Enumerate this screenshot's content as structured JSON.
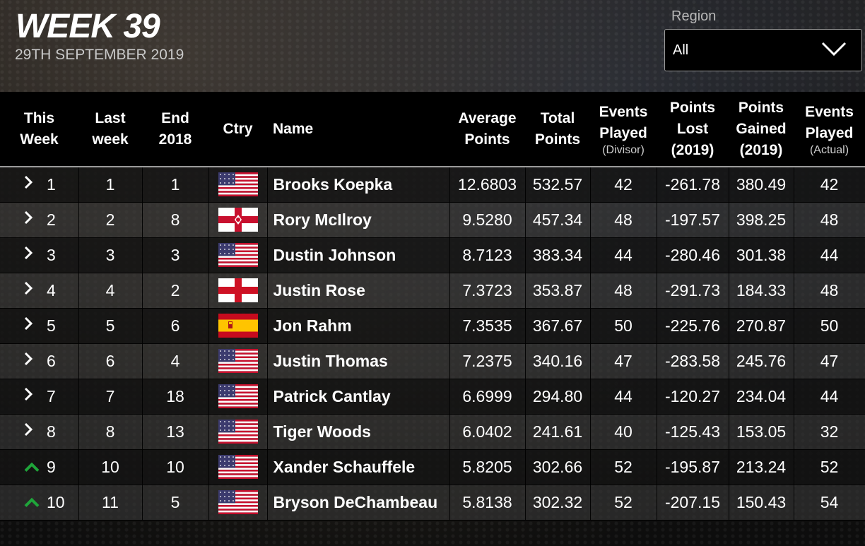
{
  "header": {
    "week_title": "WEEK 39",
    "date": "29TH SEPTEMBER 2019",
    "region_label": "Region",
    "region_value": "All"
  },
  "columns": {
    "this_week": [
      "This",
      "Week"
    ],
    "last_week": [
      "Last",
      "week"
    ],
    "end_2018": [
      "End",
      "2018"
    ],
    "country": "Ctry",
    "name": "Name",
    "average_points": [
      "Average",
      "Points"
    ],
    "total_points": [
      "Total",
      "Points"
    ],
    "events_played_divisor": [
      "Events",
      "Played",
      "(Divisor)"
    ],
    "points_lost": [
      "Points",
      "Lost",
      "(2019)"
    ],
    "points_gained": [
      "Points",
      "Gained",
      "(2019)"
    ],
    "events_played_actual": [
      "Events",
      "Played",
      "(Actual)"
    ]
  },
  "colors": {
    "up_arrow": "#1fa53a",
    "row_dark": "#141414",
    "row_light": "#373737"
  },
  "rows": [
    {
      "this_week": "1",
      "move": "same",
      "last_week": "1",
      "end_2018": "1",
      "country": "USA",
      "name": "Brooks Koepka",
      "avg": "12.6803",
      "total": "532.57",
      "played_div": "42",
      "lost": "-261.78",
      "gained": "380.49",
      "played_act": "42"
    },
    {
      "this_week": "2",
      "move": "same",
      "last_week": "2",
      "end_2018": "8",
      "country": "NIR",
      "name": "Rory McIlroy",
      "avg": "9.5280",
      "total": "457.34",
      "played_div": "48",
      "lost": "-197.57",
      "gained": "398.25",
      "played_act": "48"
    },
    {
      "this_week": "3",
      "move": "same",
      "last_week": "3",
      "end_2018": "3",
      "country": "USA",
      "name": "Dustin Johnson",
      "avg": "8.7123",
      "total": "383.34",
      "played_div": "44",
      "lost": "-280.46",
      "gained": "301.38",
      "played_act": "44"
    },
    {
      "this_week": "4",
      "move": "same",
      "last_week": "4",
      "end_2018": "2",
      "country": "ENG",
      "name": "Justin Rose",
      "avg": "7.3723",
      "total": "353.87",
      "played_div": "48",
      "lost": "-291.73",
      "gained": "184.33",
      "played_act": "48"
    },
    {
      "this_week": "5",
      "move": "same",
      "last_week": "5",
      "end_2018": "6",
      "country": "ESP",
      "name": "Jon Rahm",
      "avg": "7.3535",
      "total": "367.67",
      "played_div": "50",
      "lost": "-225.76",
      "gained": "270.87",
      "played_act": "50"
    },
    {
      "this_week": "6",
      "move": "same",
      "last_week": "6",
      "end_2018": "4",
      "country": "USA",
      "name": "Justin Thomas",
      "avg": "7.2375",
      "total": "340.16",
      "played_div": "47",
      "lost": "-283.58",
      "gained": "245.76",
      "played_act": "47"
    },
    {
      "this_week": "7",
      "move": "same",
      "last_week": "7",
      "end_2018": "18",
      "country": "USA",
      "name": "Patrick Cantlay",
      "avg": "6.6999",
      "total": "294.80",
      "played_div": "44",
      "lost": "-120.27",
      "gained": "234.04",
      "played_act": "44"
    },
    {
      "this_week": "8",
      "move": "same",
      "last_week": "8",
      "end_2018": "13",
      "country": "USA",
      "name": "Tiger Woods",
      "avg": "6.0402",
      "total": "241.61",
      "played_div": "40",
      "lost": "-125.43",
      "gained": "153.05",
      "played_act": "32"
    },
    {
      "this_week": "9",
      "move": "up",
      "last_week": "10",
      "end_2018": "10",
      "country": "USA",
      "name": "Xander Schauffele",
      "avg": "5.8205",
      "total": "302.66",
      "played_div": "52",
      "lost": "-195.87",
      "gained": "213.24",
      "played_act": "52"
    },
    {
      "this_week": "10",
      "move": "up",
      "last_week": "11",
      "end_2018": "5",
      "country": "USA",
      "name": "Bryson DeChambeau",
      "avg": "5.8138",
      "total": "302.32",
      "played_div": "52",
      "lost": "-207.15",
      "gained": "150.43",
      "played_act": "54"
    }
  ]
}
